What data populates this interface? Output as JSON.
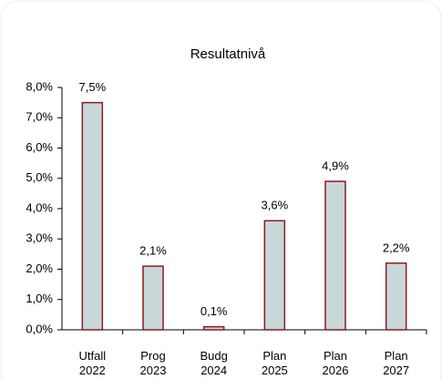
{
  "chart_data": {
    "type": "bar",
    "title": "Resultatnivå",
    "categories": [
      [
        "Utfall",
        "2022"
      ],
      [
        "Prog",
        "2023"
      ],
      [
        "Budg",
        "2024"
      ],
      [
        "Plan",
        "2025"
      ],
      [
        "Plan",
        "2026"
      ],
      [
        "Plan",
        "2027"
      ]
    ],
    "values": [
      7.5,
      2.1,
      0.1,
      3.6,
      4.9,
      2.2
    ],
    "value_labels": [
      "7,5%",
      "2,1%",
      "0,1%",
      "3,6%",
      "4,9%",
      "2,2%"
    ],
    "color": "#c9d7d9",
    "edge_color": "#8b1c1c",
    "ylim": [
      0,
      8
    ],
    "yticks": [
      {
        "value": 0,
        "label": "0,0%"
      },
      {
        "value": 1,
        "label": "1,0%"
      },
      {
        "value": 2,
        "label": "2,0%"
      },
      {
        "value": 3,
        "label": "3,0%"
      },
      {
        "value": 4,
        "label": "4,0%"
      },
      {
        "value": 5,
        "label": "5,0%"
      },
      {
        "value": 6,
        "label": "6,0%"
      },
      {
        "value": 7,
        "label": "7,0%"
      },
      {
        "value": 8,
        "label": "8,0%"
      }
    ],
    "grid": false
  }
}
